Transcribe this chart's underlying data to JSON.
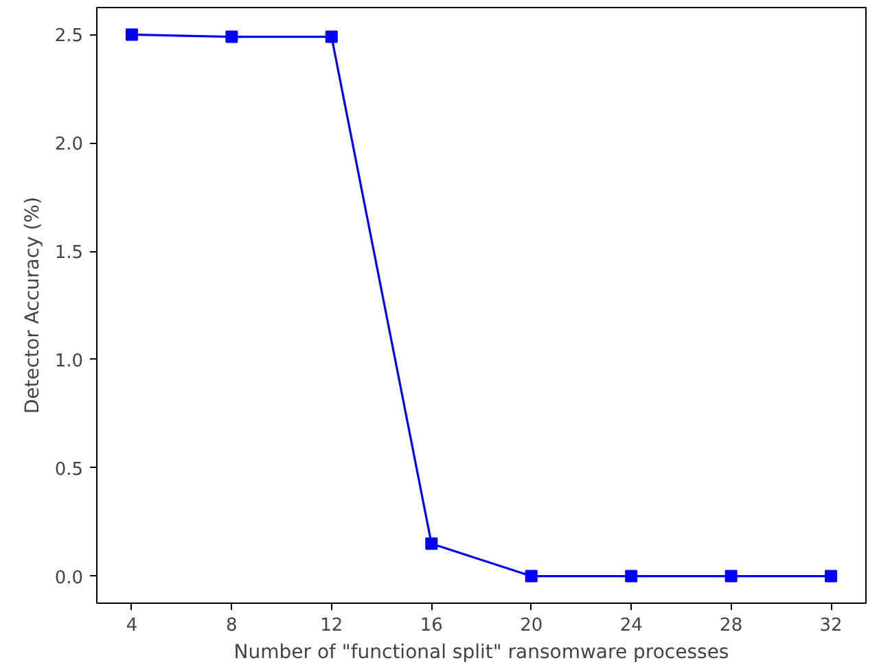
{
  "chart_data": {
    "type": "line",
    "xlabel": "Number of \"functional split\" ransomware processes",
    "ylabel": "Detector Accuracy (%)",
    "x": [
      4,
      8,
      12,
      16,
      20,
      24,
      28,
      32
    ],
    "series": [
      {
        "color": "#0000ff",
        "values": [
          2.5,
          2.49,
          2.49,
          0.15,
          0,
          0,
          0,
          0
        ]
      }
    ],
    "xlim": [
      2.6,
      33.4
    ],
    "ylim": [
      -0.125,
      2.625
    ],
    "xticks": [
      4,
      8,
      12,
      16,
      20,
      24,
      28,
      32
    ],
    "yticks": [
      {
        "value": 0,
        "label": "0.0"
      },
      {
        "value": 0.5,
        "label": "0.5"
      },
      {
        "value": 1,
        "label": "1.0"
      },
      {
        "value": 1.5,
        "label": "1.5"
      },
      {
        "value": 2,
        "label": "2.0"
      },
      {
        "value": 2.5,
        "label": "2.5"
      }
    ],
    "marker": "square",
    "line_style": "solid",
    "grid": false
  }
}
